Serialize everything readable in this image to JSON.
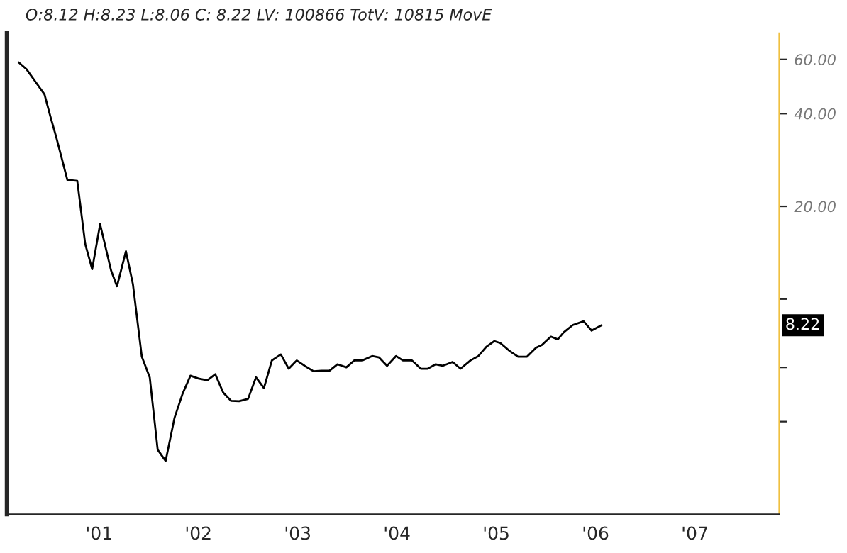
{
  "chart_data": {
    "type": "line",
    "title": "O:8.12 H:8.23 L:8.06 C: 8.22 LV: 100866 TotV: 10815 MovE",
    "x": [
      2000.19,
      2000.27,
      2000.37,
      2000.45,
      2000.51,
      2000.57,
      2000.68,
      2000.78,
      2000.86,
      2000.93,
      2001.01,
      2001.12,
      2001.18,
      2001.27,
      2001.34,
      2001.43,
      2001.51,
      2001.59,
      2001.67,
      2001.76,
      2001.84,
      2001.92,
      2002.0,
      2002.09,
      2002.17,
      2002.25,
      2002.33,
      2002.41,
      2002.5,
      2002.58,
      2002.66,
      2002.74,
      2002.83,
      2002.91,
      2002.99,
      2003.07,
      2003.16,
      2003.24,
      2003.32,
      2003.4,
      2003.49,
      2003.57,
      2003.65,
      2003.75,
      2003.82,
      2003.9,
      2003.99,
      2004.06,
      2004.15,
      2004.24,
      2004.31,
      2004.39,
      2004.46,
      2004.56,
      2004.64,
      2004.74,
      2004.82,
      2004.9,
      2004.98,
      2005.04,
      2005.13,
      2005.22,
      2005.31,
      2005.4,
      2005.46,
      2005.55,
      2005.62,
      2005.68,
      2005.77,
      2005.88,
      2005.96,
      2006.06
    ],
    "series": [
      {
        "color": "#000000",
        "values": [
          58.7,
          55.7,
          50.2,
          46.2,
          39.1,
          33.4,
          24.4,
          24.2,
          15.1,
          12.5,
          17.5,
          12.4,
          11.0,
          14.3,
          11.2,
          6.5,
          5.57,
          3.24,
          2.98,
          4.12,
          4.92,
          5.64,
          5.52,
          5.45,
          5.7,
          4.97,
          4.67,
          4.66,
          4.74,
          5.57,
          5.14,
          6.32,
          6.61,
          5.94,
          6.32,
          6.07,
          5.83,
          5.85,
          5.85,
          6.14,
          6.0,
          6.32,
          6.32,
          6.53,
          6.46,
          6.07,
          6.53,
          6.32,
          6.32,
          5.94,
          5.94,
          6.14,
          6.07,
          6.25,
          5.94,
          6.32,
          6.53,
          7.0,
          7.3,
          7.2,
          6.8,
          6.5,
          6.5,
          6.95,
          7.1,
          7.55,
          7.4,
          7.8,
          8.23,
          8.47,
          7.9,
          8.22
        ]
      }
    ],
    "annotations": [
      "8.22"
    ],
    "log": "y",
    "grid": false,
    "legend": false,
    "marker": "none",
    "line_style": "solid",
    "xlim": [
      2000.07,
      2007.85
    ],
    "xticks": [
      {
        "value": 2001,
        "label": "'01"
      },
      {
        "value": 2002,
        "label": "'02"
      },
      {
        "value": 2003,
        "label": "'03"
      },
      {
        "value": 2004,
        "label": "'04"
      },
      {
        "value": 2005,
        "label": "'05"
      },
      {
        "value": 2006,
        "label": "'06"
      },
      {
        "value": 2007,
        "label": "'07"
      }
    ],
    "ylim": [
      2.0,
      73
    ],
    "yticks": [
      {
        "value": 4,
        "label": null
      },
      {
        "value": 6,
        "label": null
      },
      {
        "value": 10,
        "label": null
      },
      {
        "value": 20,
        "label": "20.00"
      },
      {
        "value": 40,
        "label": "40.00"
      },
      {
        "value": 60,
        "label": "60.00"
      }
    ]
  }
}
